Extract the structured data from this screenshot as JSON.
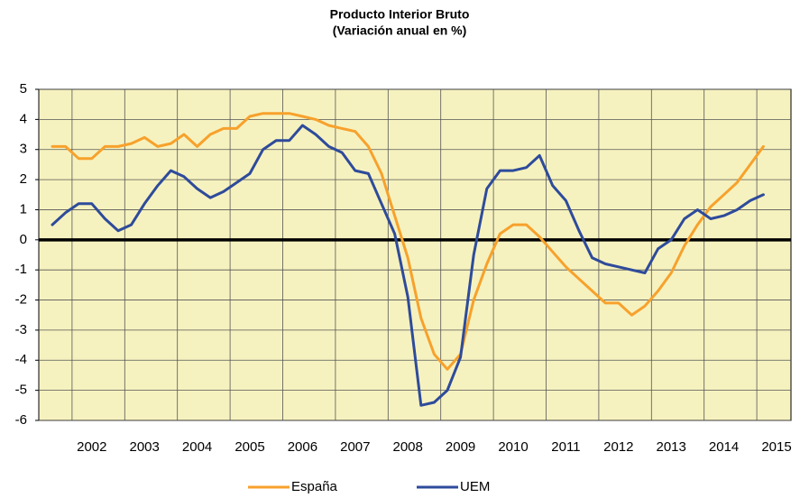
{
  "chart_data": {
    "type": "line",
    "title": "Producto Interior Bruto",
    "subtitle": "(Variación anual en %)",
    "categories": [
      null,
      null,
      null,
      "2002",
      null,
      null,
      null,
      "2003",
      null,
      null,
      null,
      "2004",
      null,
      null,
      null,
      "2005",
      null,
      null,
      null,
      "2006",
      null,
      null,
      null,
      "2007",
      null,
      null,
      null,
      "2008",
      null,
      null,
      null,
      "2009",
      null,
      null,
      null,
      "2010",
      null,
      null,
      null,
      "2011",
      null,
      null,
      null,
      "2012",
      null,
      null,
      null,
      "2013",
      null,
      null,
      null,
      "2014",
      null,
      null,
      null,
      "2015"
    ],
    "series": [
      {
        "name": "España",
        "color": "#f7a12c",
        "values": [
          3.1,
          3.1,
          2.7,
          2.7,
          3.1,
          3.1,
          3.2,
          3.4,
          3.1,
          3.2,
          3.5,
          3.1,
          3.5,
          3.7,
          3.7,
          4.1,
          4.2,
          4.2,
          4.2,
          4.1,
          4.0,
          3.8,
          3.7,
          3.6,
          3.1,
          2.2,
          0.8,
          -0.6,
          -2.6,
          -3.8,
          -4.3,
          -3.8,
          -2.0,
          -0.8,
          0.2,
          0.5,
          0.5,
          0.1,
          -0.4,
          -0.9,
          -1.3,
          -1.7,
          -2.1,
          -2.1,
          -2.5,
          -2.2,
          -1.7,
          -1.1,
          -0.2,
          0.5,
          1.1,
          1.5,
          1.9,
          2.5,
          3.1,
          null
        ]
      },
      {
        "name": "UEM",
        "color": "#2e4b9b",
        "values": [
          0.5,
          0.9,
          1.2,
          1.2,
          0.7,
          0.3,
          0.5,
          1.2,
          1.8,
          2.3,
          2.1,
          1.7,
          1.4,
          1.6,
          1.9,
          2.2,
          3.0,
          3.3,
          3.3,
          3.8,
          3.5,
          3.1,
          2.9,
          2.3,
          2.2,
          1.2,
          0.2,
          -1.9,
          -5.5,
          -5.4,
          -5.0,
          -3.9,
          -0.5,
          1.7,
          2.3,
          2.3,
          2.4,
          2.8,
          1.8,
          1.3,
          0.3,
          -0.6,
          -0.8,
          -0.9,
          -1.0,
          -1.1,
          -0.3,
          0.0,
          0.7,
          1.0,
          0.7,
          0.8,
          1.0,
          1.3,
          1.5,
          null
        ]
      }
    ],
    "ylim": [
      -6,
      5
    ],
    "yticks": [
      -6,
      -5,
      -4,
      -3,
      -2,
      -1,
      0,
      1,
      2,
      3,
      4,
      5
    ],
    "grid": true,
    "legend": "bottom"
  }
}
